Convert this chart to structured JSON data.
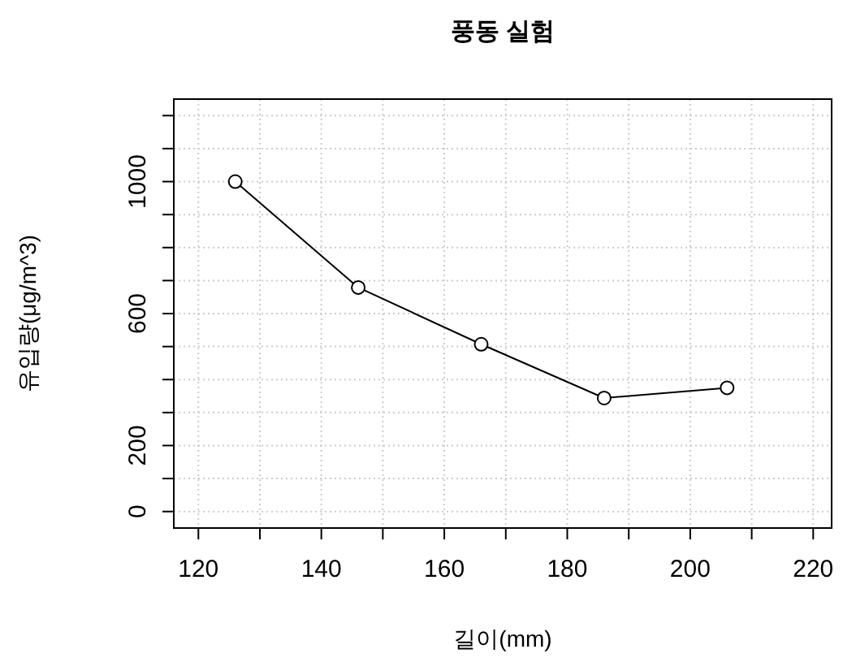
{
  "chart_data": {
    "type": "line",
    "title": "풍동 실험",
    "xlabel": "길이(mm)",
    "ylabel": "유입량(μg/m^3)",
    "x": [
      126,
      146,
      166,
      186,
      206
    ],
    "series": [
      {
        "color": "#000000",
        "values": [
          1000,
          679,
          507,
          344,
          375
        ]
      }
    ],
    "xlim": [
      116,
      223
    ],
    "ylim": [
      -50,
      1250
    ],
    "xticks": [
      120,
      {
        "value": 130,
        "label": null
      },
      140,
      {
        "value": 150,
        "label": null
      },
      160,
      {
        "value": 170,
        "label": null
      },
      180,
      {
        "value": 190,
        "label": null
      },
      200,
      {
        "value": 210,
        "label": null
      },
      220
    ],
    "yticks": [
      0,
      {
        "value": 100,
        "label": null
      },
      200,
      {
        "value": 300,
        "label": null
      },
      {
        "value": 400,
        "label": null
      },
      {
        "value": 500,
        "label": null
      },
      600,
      {
        "value": 700,
        "label": null
      },
      {
        "value": 800,
        "label": null
      },
      {
        "value": 900,
        "label": null
      },
      1000,
      {
        "value": 1100,
        "label": null
      },
      {
        "value": 1200,
        "label": null
      }
    ],
    "grid": true,
    "marker": "circle",
    "line_style": "solid"
  }
}
